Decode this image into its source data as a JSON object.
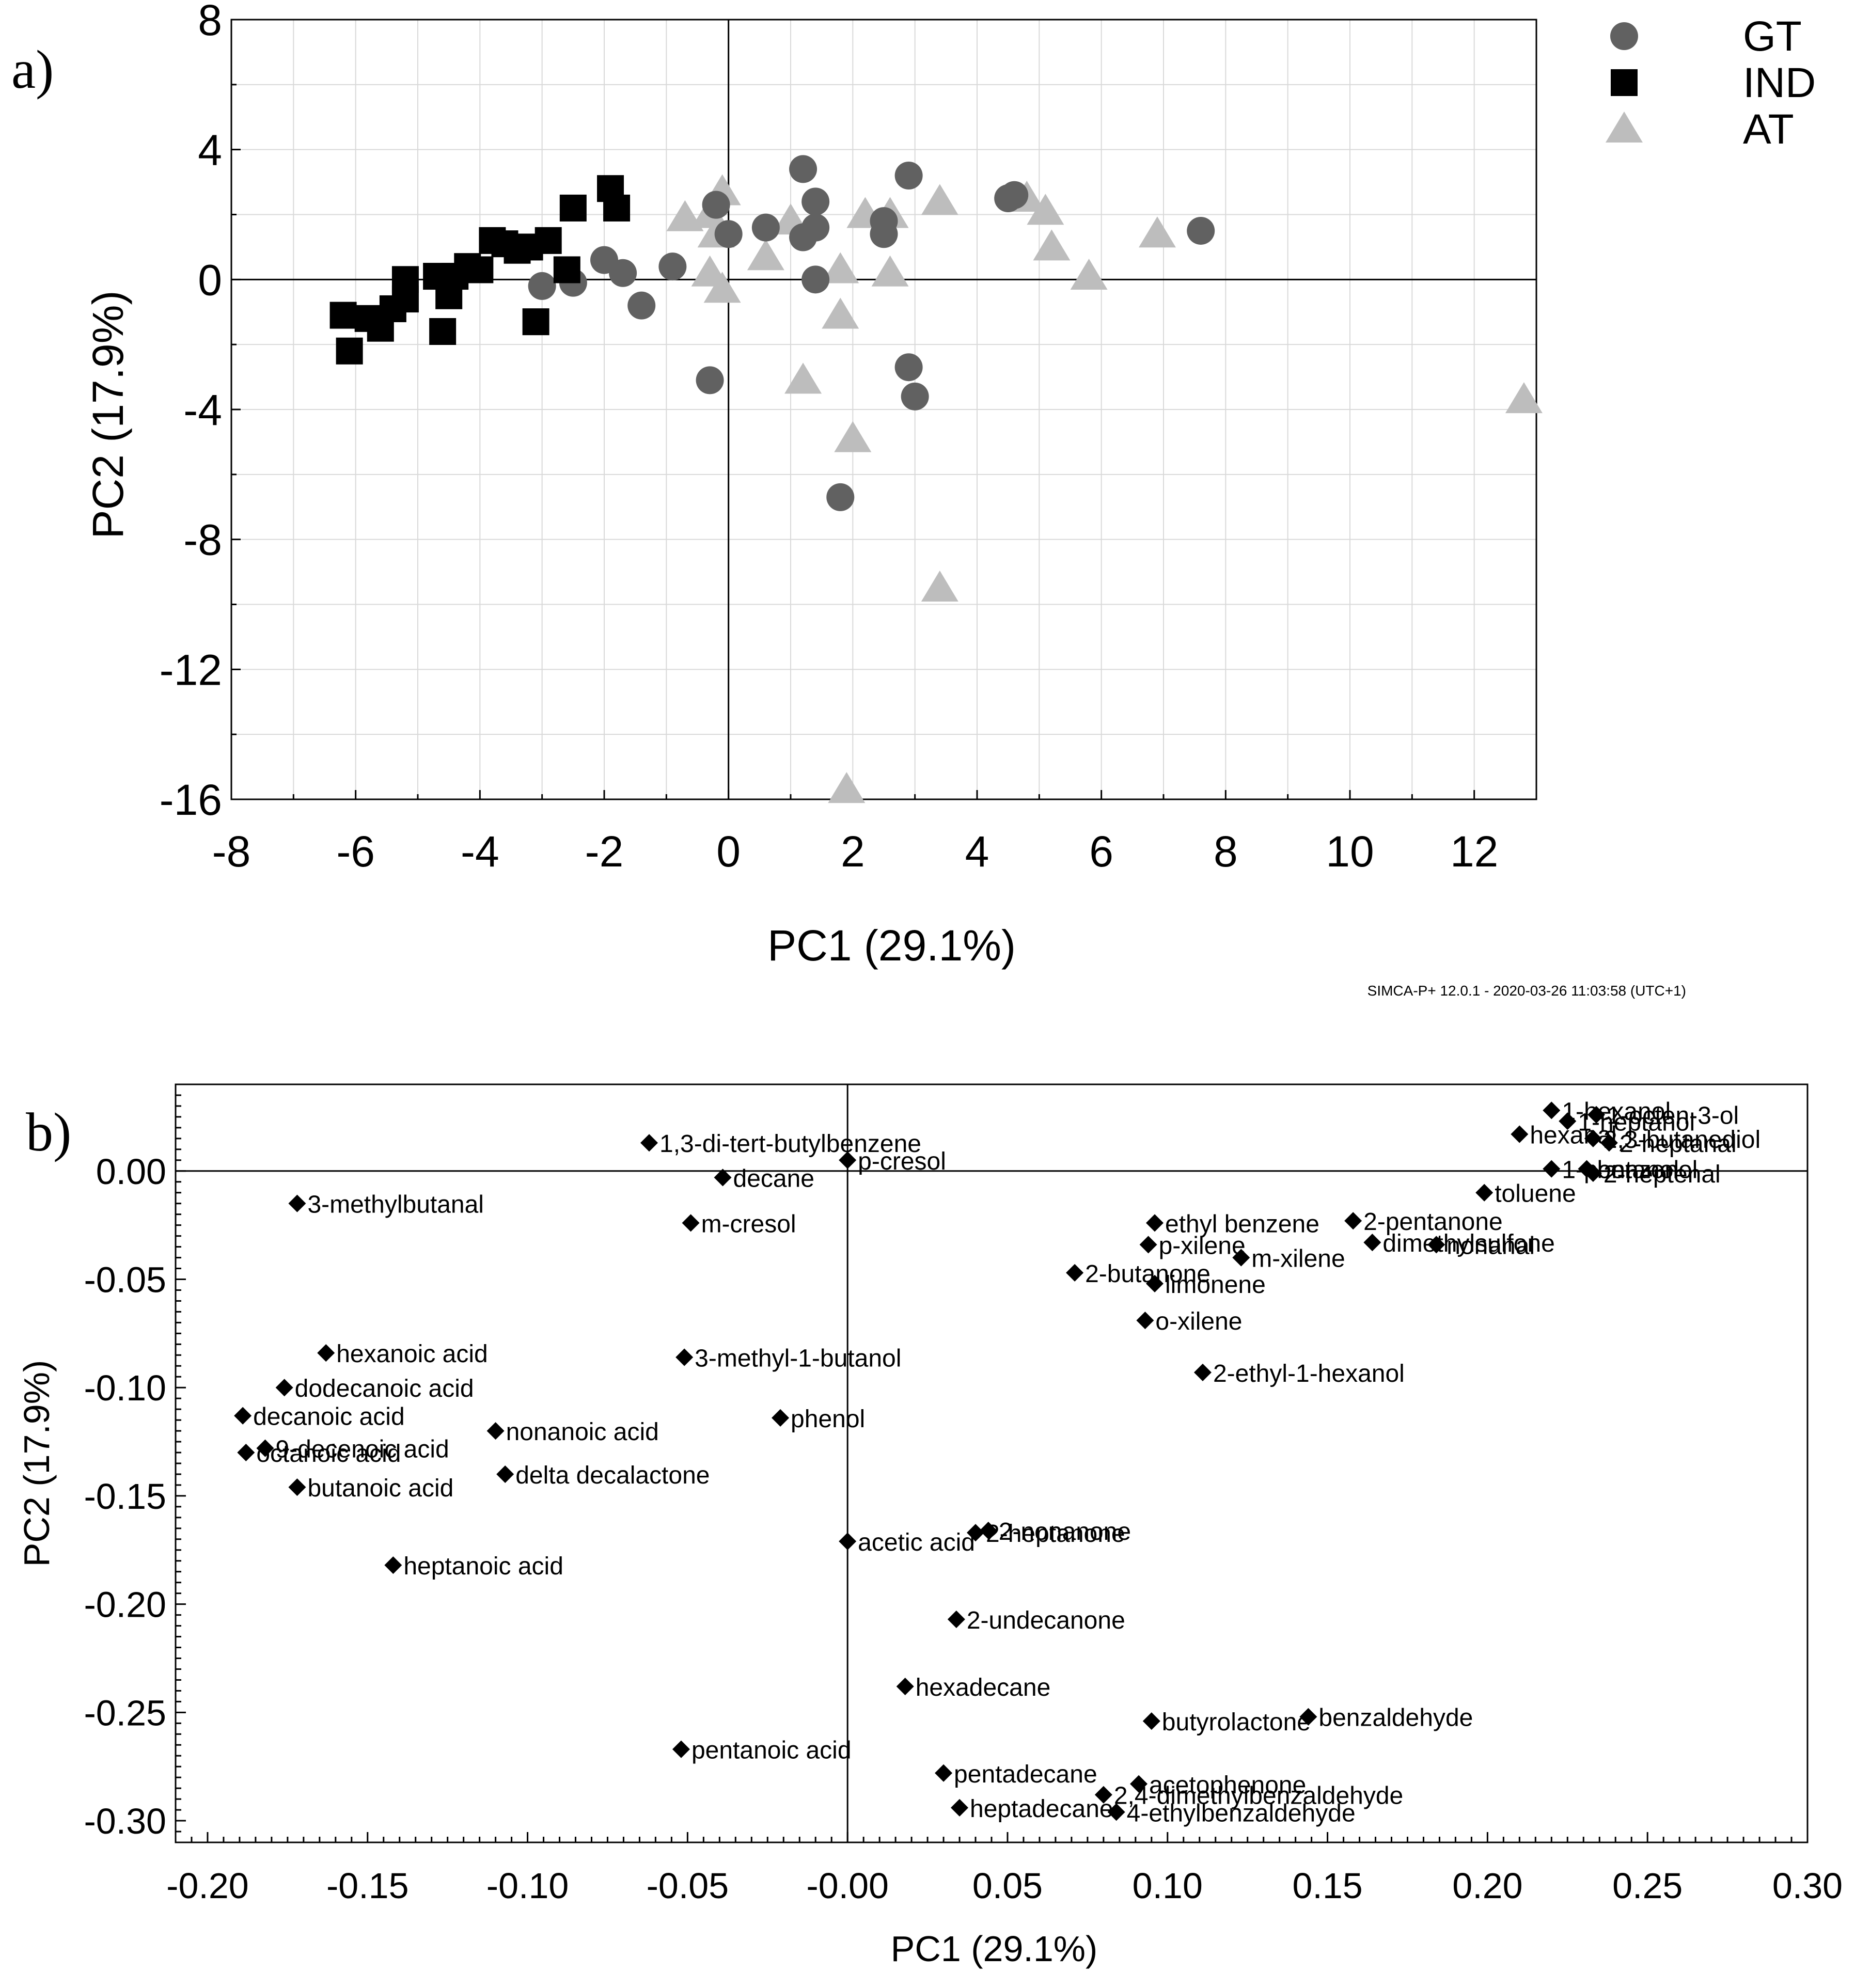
{
  "panels": {
    "a_label": "a)",
    "b_label": "b)"
  },
  "footer_text": "SIMCA-P+ 12.0.1 - 2020-03-26 11:03:58 (UTC+1)",
  "colors": {
    "GT": "#616161",
    "IND": "#000000",
    "AT": "#bdbdbd",
    "loading": "#000000",
    "grid": "#d9d9d9",
    "axis": "#000000"
  },
  "chart_data": [
    {
      "type": "scatter",
      "title": "",
      "xlabel": "PC1 (29.1%)",
      "ylabel": "PC2 (17.9%)",
      "xlim": [
        -8,
        13
      ],
      "ylim": [
        -16,
        8
      ],
      "x_ticks": [
        "-8",
        "-6",
        "-4",
        "-2",
        "0",
        "2",
        "4",
        "6",
        "8",
        "10",
        "12"
      ],
      "y_ticks": [
        "8",
        "4",
        "0",
        "-4",
        "-8",
        "-12",
        "-16"
      ],
      "grid": true,
      "legend_position": "top-right",
      "series": [
        {
          "name": "GT",
          "marker": "circle",
          "points": [
            [
              -2.0,
              0.6
            ],
            [
              -1.7,
              0.2
            ],
            [
              -1.4,
              -0.8
            ],
            [
              -0.9,
              0.4
            ],
            [
              -0.3,
              -3.1
            ],
            [
              -0.2,
              2.3
            ],
            [
              0.0,
              1.4
            ],
            [
              0.6,
              1.6
            ],
            [
              1.2,
              3.4
            ],
            [
              1.2,
              1.3
            ],
            [
              1.4,
              2.4
            ],
            [
              1.4,
              1.6
            ],
            [
              1.4,
              0.0
            ],
            [
              1.8,
              -6.7
            ],
            [
              2.5,
              1.4
            ],
            [
              2.5,
              1.8
            ],
            [
              2.9,
              3.2
            ],
            [
              2.9,
              -2.7
            ],
            [
              3.0,
              -3.6
            ],
            [
              4.5,
              2.5
            ],
            [
              4.6,
              2.6
            ],
            [
              7.6,
              1.5
            ],
            [
              -3.0,
              -0.2
            ],
            [
              -2.5,
              -0.1
            ]
          ]
        },
        {
          "name": "IND",
          "marker": "square",
          "points": [
            [
              -6.2,
              -1.1
            ],
            [
              -6.1,
              -2.2
            ],
            [
              -5.8,
              -1.2
            ],
            [
              -5.6,
              -1.5
            ],
            [
              -5.4,
              -0.9
            ],
            [
              -5.2,
              -0.6
            ],
            [
              -5.2,
              0.0
            ],
            [
              -4.7,
              0.1
            ],
            [
              -4.6,
              -1.6
            ],
            [
              -4.5,
              -0.5
            ],
            [
              -4.4,
              0.1
            ],
            [
              -4.2,
              0.4
            ],
            [
              -4.0,
              0.3
            ],
            [
              -3.8,
              1.2
            ],
            [
              -3.6,
              1.1
            ],
            [
              -3.4,
              0.9
            ],
            [
              -3.2,
              1.0
            ],
            [
              -3.1,
              -1.3
            ],
            [
              -2.9,
              1.2
            ],
            [
              -2.6,
              0.3
            ],
            [
              -2.5,
              2.2
            ],
            [
              -1.9,
              2.8
            ],
            [
              -1.8,
              2.2
            ]
          ]
        },
        {
          "name": "AT",
          "marker": "triangle",
          "points": [
            [
              -0.7,
              1.9
            ],
            [
              -0.3,
              2.0
            ],
            [
              -0.2,
              1.4
            ],
            [
              -0.1,
              2.7
            ],
            [
              -0.3,
              0.2
            ],
            [
              -0.1,
              -0.3
            ],
            [
              0.6,
              0.7
            ],
            [
              1.0,
              1.8
            ],
            [
              1.2,
              -3.1
            ],
            [
              1.8,
              0.3
            ],
            [
              1.8,
              -1.1
            ],
            [
              1.9,
              -15.7
            ],
            [
              2.0,
              -4.9
            ],
            [
              2.2,
              2.0
            ],
            [
              2.6,
              0.2
            ],
            [
              2.6,
              2.0
            ],
            [
              3.4,
              2.4
            ],
            [
              3.4,
              -9.5
            ],
            [
              4.8,
              2.5
            ],
            [
              5.1,
              2.1
            ],
            [
              5.2,
              1.0
            ],
            [
              5.8,
              0.1
            ],
            [
              6.9,
              1.4
            ],
            [
              12.8,
              -3.7
            ]
          ]
        }
      ]
    },
    {
      "type": "scatter",
      "title": "",
      "xlabel": "PC1 (29.1%)",
      "ylabel": "PC2 (17.9%)",
      "xlim": [
        -0.21,
        0.3
      ],
      "ylim": [
        -0.31,
        0.04
      ],
      "x_ticks": [
        "-0.20",
        "-0.15",
        "-0.10",
        "-0.05",
        "-0.00",
        "0.05",
        "0.10",
        "0.15",
        "0.20",
        "0.25",
        "0.30"
      ],
      "y_ticks": [
        "0.00",
        "-0.05",
        "-0.10",
        "-0.15",
        "-0.20",
        "-0.25",
        "-0.30"
      ],
      "grid": false,
      "marker": "diamond",
      "points": [
        {
          "label": "1,3-di-tert-butylbenzene",
          "x": -0.062,
          "y": 0.013
        },
        {
          "label": "p-cresol",
          "x": 0.0,
          "y": 0.005
        },
        {
          "label": "decane",
          "x": -0.039,
          "y": -0.003
        },
        {
          "label": "3-methylbutanal",
          "x": -0.172,
          "y": -0.015
        },
        {
          "label": "m-cresol",
          "x": -0.049,
          "y": -0.024
        },
        {
          "label": "hexanoic acid",
          "x": -0.163,
          "y": -0.084
        },
        {
          "label": "3-methyl-1-butanol",
          "x": -0.051,
          "y": -0.086
        },
        {
          "label": "dodecanoic acid",
          "x": -0.176,
          "y": -0.1
        },
        {
          "label": "decanoic acid",
          "x": -0.189,
          "y": -0.113
        },
        {
          "label": "9-decenoic acid",
          "x": -0.182,
          "y": -0.128
        },
        {
          "label": "octanoic acid",
          "x": -0.188,
          "y": -0.13
        },
        {
          "label": "nonanoic acid",
          "x": -0.11,
          "y": -0.12
        },
        {
          "label": "phenol",
          "x": -0.021,
          "y": -0.114
        },
        {
          "label": "butanoic acid",
          "x": -0.172,
          "y": -0.146
        },
        {
          "label": "delta decalactone",
          "x": -0.107,
          "y": -0.14
        },
        {
          "label": "heptanoic acid",
          "x": -0.142,
          "y": -0.182
        },
        {
          "label": "acetic acid",
          "x": 0.0,
          "y": -0.171
        },
        {
          "label": "2-nonanone",
          "x": 0.044,
          "y": -0.166
        },
        {
          "label": "2-heptanone",
          "x": 0.04,
          "y": -0.167
        },
        {
          "label": "2-undecanone",
          "x": 0.034,
          "y": -0.207
        },
        {
          "label": "hexadecane",
          "x": 0.018,
          "y": -0.238
        },
        {
          "label": "pentanoic acid",
          "x": -0.052,
          "y": -0.267
        },
        {
          "label": "pentadecane",
          "x": 0.03,
          "y": -0.278
        },
        {
          "label": "heptadecane",
          "x": 0.035,
          "y": -0.294
        },
        {
          "label": "butyrolactone",
          "x": 0.095,
          "y": -0.254
        },
        {
          "label": "benzaldehyde",
          "x": 0.144,
          "y": -0.252
        },
        {
          "label": "acetophenone",
          "x": 0.091,
          "y": -0.283
        },
        {
          "label": "2,4-dimethylbenzaldehyde",
          "x": 0.08,
          "y": -0.288
        },
        {
          "label": "4-ethylbenzaldehyde",
          "x": 0.084,
          "y": -0.296
        },
        {
          "label": "2-butanone",
          "x": 0.071,
          "y": -0.047
        },
        {
          "label": "limonene",
          "x": 0.096,
          "y": -0.052
        },
        {
          "label": "o-xilene",
          "x": 0.093,
          "y": -0.069
        },
        {
          "label": "p-xilene",
          "x": 0.094,
          "y": -0.034
        },
        {
          "label": "ethyl benzene",
          "x": 0.096,
          "y": -0.024
        },
        {
          "label": "m-xilene",
          "x": 0.123,
          "y": -0.04
        },
        {
          "label": "2-ethyl-1-hexanol",
          "x": 0.111,
          "y": -0.093
        },
        {
          "label": "2-pentanone",
          "x": 0.158,
          "y": -0.023
        },
        {
          "label": "dimethylsulfone",
          "x": 0.164,
          "y": -0.033
        },
        {
          "label": "nonanal",
          "x": 0.184,
          "y": -0.034
        },
        {
          "label": "toluene",
          "x": 0.199,
          "y": -0.01
        },
        {
          "label": "1-hexanol",
          "x": 0.22,
          "y": 0.028
        },
        {
          "label": "1-heptanol",
          "x": 0.225,
          "y": 0.023
        },
        {
          "label": "1-octen-3-ol",
          "x": 0.234,
          "y": 0.026
        },
        {
          "label": "hexanal",
          "x": 0.21,
          "y": 0.017
        },
        {
          "label": "2,3-butanediol",
          "x": 0.233,
          "y": 0.015
        },
        {
          "label": "2-heptanal",
          "x": 0.238,
          "y": 0.013
        },
        {
          "label": "1-pentanol",
          "x": 0.22,
          "y": 0.001
        },
        {
          "label": "benzonol",
          "x": 0.231,
          "y": 0.001
        },
        {
          "label": "2-heptenal",
          "x": 0.233,
          "y": -0.001
        }
      ]
    }
  ]
}
